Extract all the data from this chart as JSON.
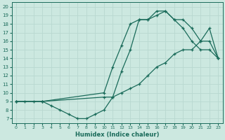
{
  "xlabel": "Humidex (Indice chaleur)",
  "bg_color": "#cce8e0",
  "line_color": "#1a6b5a",
  "grid_color": "#b8d8d0",
  "xlim": [
    -0.5,
    23.5
  ],
  "ylim": [
    6.5,
    20.5
  ],
  "xticks": [
    0,
    1,
    2,
    3,
    4,
    5,
    6,
    7,
    8,
    9,
    10,
    11,
    12,
    13,
    14,
    15,
    16,
    17,
    18,
    19,
    20,
    21,
    22,
    23
  ],
  "yticks": [
    7,
    8,
    9,
    10,
    11,
    12,
    13,
    14,
    15,
    16,
    17,
    18,
    19,
    20
  ],
  "line1_x": [
    0,
    1,
    2,
    3,
    4,
    5,
    6,
    7,
    8,
    9,
    10,
    11,
    12,
    13,
    14,
    15,
    16,
    17,
    18,
    19,
    20,
    21,
    22,
    23
  ],
  "line1_y": [
    9,
    9,
    9,
    9,
    8.5,
    8,
    7.5,
    7,
    7,
    7.5,
    8,
    9.5,
    12.5,
    15,
    18.5,
    18.5,
    19,
    19.5,
    18.5,
    17.5,
    16,
    15,
    15,
    14
  ],
  "line2_x": [
    0,
    3,
    10,
    11,
    12,
    13,
    14,
    15,
    16,
    17,
    18,
    19,
    20,
    21,
    22,
    23
  ],
  "line2_y": [
    9,
    9,
    10,
    13,
    15.5,
    18,
    18.5,
    18.5,
    19.5,
    19.5,
    18.5,
    18.5,
    17.5,
    16,
    16,
    14
  ],
  "line3_x": [
    0,
    3,
    10,
    11,
    12,
    13,
    14,
    15,
    16,
    17,
    18,
    19,
    20,
    21,
    22,
    23
  ],
  "line3_y": [
    9,
    9,
    9.5,
    9.5,
    10,
    10.5,
    11,
    12,
    13,
    13.5,
    14.5,
    15,
    15,
    16,
    17.5,
    14
  ]
}
